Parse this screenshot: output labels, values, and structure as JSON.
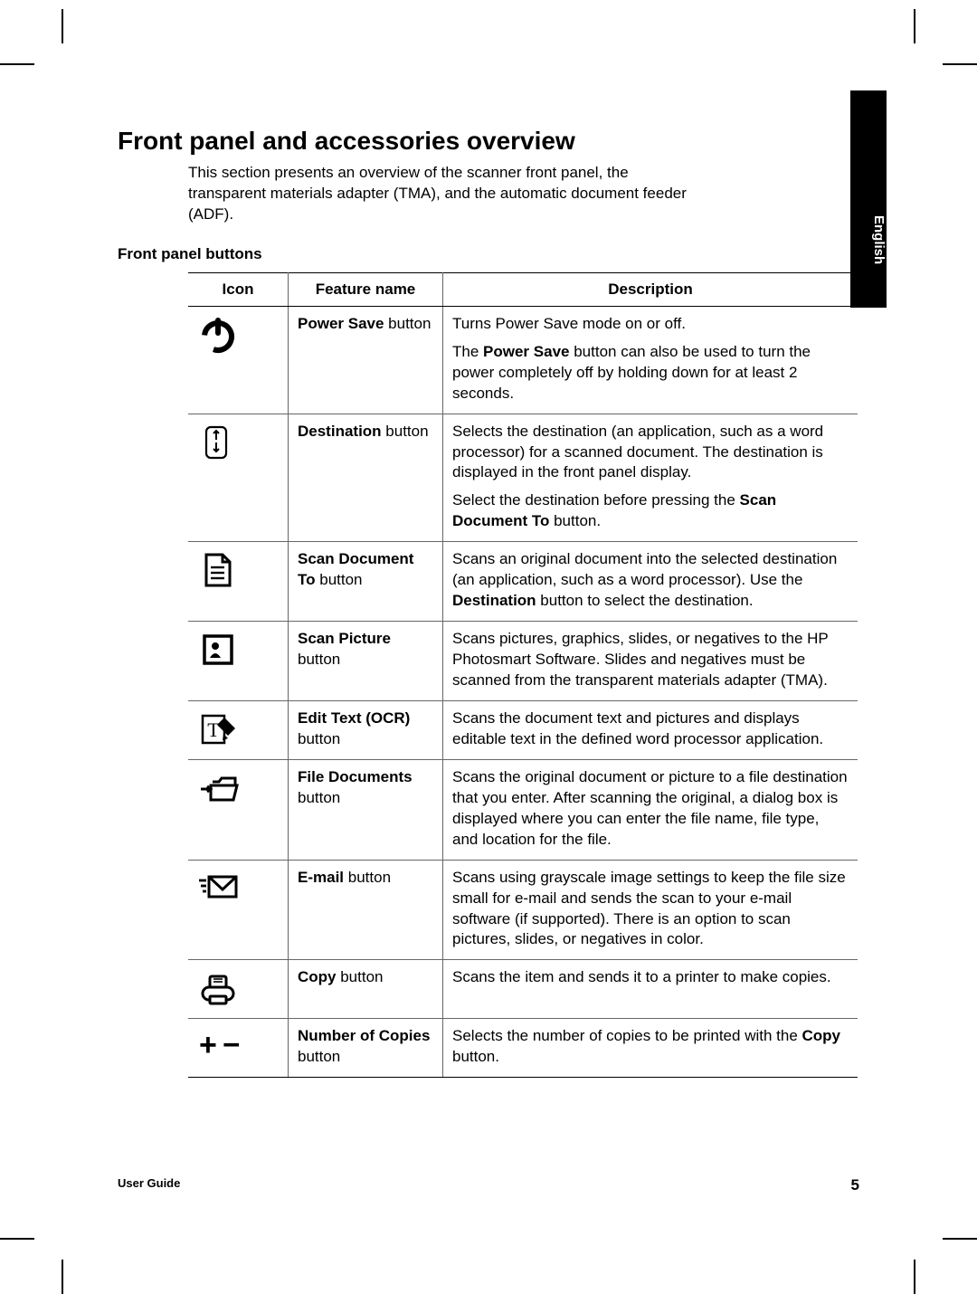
{
  "lang_tab": "English",
  "title": "Front panel and accessories overview",
  "intro": "This section presents an overview of the scanner front panel, the transparent materials adapter (TMA), and the automatic document feeder (ADF).",
  "subhead": "Front panel buttons",
  "table": {
    "headers": {
      "icon": "Icon",
      "name": "Feature name",
      "desc": "Description"
    },
    "iconColor": "#000000",
    "rows": [
      {
        "icon": "power",
        "name_html": "<span class='b'>Power Save</span> button",
        "desc_html": "<p>Turns Power Save mode on or off.</p><p>The <span class='b'>Power Save</span> button can also be used to turn the power completely off by holding down for at least 2 seconds.</p>"
      },
      {
        "icon": "destination",
        "name_html": "<span class='b'>Destination</span> button",
        "desc_html": "<p>Selects the destination (an application, such as a word processor) for a scanned document. The destination is displayed in the front panel display.</p><p>Select the destination before pressing the <span class='b'>Scan Document To</span> button.</p>"
      },
      {
        "icon": "scan-doc",
        "name_html": "<span class='b'>Scan Document To</span> button",
        "desc_html": "<p>Scans an original document into the selected destination (an application, such as a word processor). Use the <span class='b'>Destination</span> button to select the destination.</p>"
      },
      {
        "icon": "scan-pic",
        "name_html": "<span class='b'>Scan Picture</span> button",
        "desc_html": "<p>Scans pictures, graphics, slides, or negatives to the HP Photosmart Software. Slides and negatives must be scanned from the transparent materials adapter (TMA).</p>"
      },
      {
        "icon": "edit-text",
        "name_html": "<span class='b'>Edit Text (OCR)</span> button",
        "desc_html": "<p>Scans the document text and pictures and displays editable text in the defined word processor application.</p>"
      },
      {
        "icon": "file-doc",
        "name_html": "<span class='b'>File Documents</span> button",
        "desc_html": "<p>Scans the original document or picture to a file destination that you enter. After scanning the original, a dialog box is displayed where you can enter the file name, file type, and location for the file.</p>"
      },
      {
        "icon": "email",
        "name_html": "<span class='b'>E-mail</span> button",
        "desc_html": "<p>Scans using grayscale image settings to keep the file size small for e-mail and sends the scan to your e-mail software (if supported). There is an option to scan pictures, slides, or negatives in color.</p>"
      },
      {
        "icon": "copy",
        "name_html": "<span class='b'>Copy</span> button",
        "desc_html": "<p>Scans the item and sends it to a printer to make copies.</p>"
      },
      {
        "icon": "copies",
        "name_html": "<span class='b'>Number of Copies</span> button",
        "desc_html": "<p>Selects the number of copies to be printed with the <span class='b'>Copy</span> button.</p>"
      }
    ]
  },
  "footer": {
    "left": "User Guide",
    "page": "5"
  }
}
